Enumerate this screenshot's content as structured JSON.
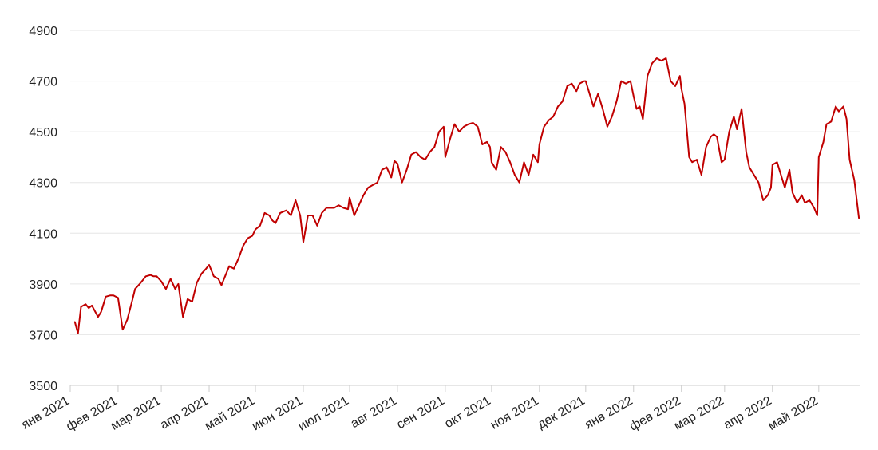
{
  "chart_data": {
    "type": "line",
    "title": "",
    "xlabel": "",
    "ylabel": "",
    "ylim": [
      3500,
      4900
    ],
    "yticks": [
      "3500",
      "3700",
      "3900",
      "4100",
      "4300",
      "4500",
      "4700",
      "4900"
    ],
    "grid": true,
    "legend": "none",
    "xticks": [
      {
        "date": "2021-01-01",
        "label": "янв 2021"
      },
      {
        "date": "2021-02-01",
        "label": "фев 2021"
      },
      {
        "date": "2021-03-01",
        "label": "мар 2021"
      },
      {
        "date": "2021-04-01",
        "label": "апр 2021"
      },
      {
        "date": "2021-05-01",
        "label": "май 2021"
      },
      {
        "date": "2021-06-01",
        "label": "июн 2021"
      },
      {
        "date": "2021-07-01",
        "label": "июл 2021"
      },
      {
        "date": "2021-08-01",
        "label": "авг 2021"
      },
      {
        "date": "2021-09-01",
        "label": "сен 2021"
      },
      {
        "date": "2021-10-01",
        "label": "окт 2021"
      },
      {
        "date": "2021-11-01",
        "label": "ноя 2021"
      },
      {
        "date": "2021-12-01",
        "label": "дек 2021"
      },
      {
        "date": "2022-01-01",
        "label": "янв 2022"
      },
      {
        "date": "2022-02-01",
        "label": "фев 2022"
      },
      {
        "date": "2022-03-01",
        "label": "мар 2022"
      },
      {
        "date": "2022-04-01",
        "label": "апр 2022"
      },
      {
        "date": "2022-05-01",
        "label": "май 2022"
      }
    ],
    "series": [
      {
        "color": "#c00000",
        "x": [
          "2021-01-04",
          "2021-01-06",
          "2021-01-08",
          "2021-01-11",
          "2021-01-13",
          "2021-01-15",
          "2021-01-19",
          "2021-01-21",
          "2021-01-24",
          "2021-01-27",
          "2021-01-29",
          "2021-02-01",
          "2021-02-04",
          "2021-02-07",
          "2021-02-10",
          "2021-02-12",
          "2021-02-15",
          "2021-02-17",
          "2021-02-19",
          "2021-02-22",
          "2021-02-24",
          "2021-02-26",
          "2021-03-01",
          "2021-03-04",
          "2021-03-07",
          "2021-03-10",
          "2021-03-12",
          "2021-03-15",
          "2021-03-18",
          "2021-03-21",
          "2021-03-24",
          "2021-03-27",
          "2021-03-30",
          "2021-04-01",
          "2021-04-04",
          "2021-04-07",
          "2021-04-09",
          "2021-04-12",
          "2021-04-14",
          "2021-04-17",
          "2021-04-20",
          "2021-04-23",
          "2021-04-26",
          "2021-04-29",
          "2021-05-01",
          "2021-05-04",
          "2021-05-07",
          "2021-05-10",
          "2021-05-12",
          "2021-05-14",
          "2021-05-17",
          "2021-05-19",
          "2021-05-21",
          "2021-05-24",
          "2021-05-27",
          "2021-05-30",
          "2021-06-01",
          "2021-06-04",
          "2021-06-07",
          "2021-06-10",
          "2021-06-13",
          "2021-06-16",
          "2021-06-18",
          "2021-06-21",
          "2021-06-24",
          "2021-06-27",
          "2021-06-30",
          "2021-07-01",
          "2021-07-04",
          "2021-07-07",
          "2021-07-10",
          "2021-07-13",
          "2021-07-16",
          "2021-07-19",
          "2021-07-22",
          "2021-07-25",
          "2021-07-28",
          "2021-07-30",
          "2021-08-01",
          "2021-08-04",
          "2021-08-07",
          "2021-08-10",
          "2021-08-13",
          "2021-08-16",
          "2021-08-19",
          "2021-08-22",
          "2021-08-25",
          "2021-08-28",
          "2021-08-31",
          "2021-09-01",
          "2021-09-04",
          "2021-09-07",
          "2021-09-10",
          "2021-09-13",
          "2021-09-16",
          "2021-09-19",
          "2021-09-22",
          "2021-09-25",
          "2021-09-28",
          "2021-09-30",
          "2021-10-01",
          "2021-10-04",
          "2021-10-07",
          "2021-10-10",
          "2021-10-13",
          "2021-10-16",
          "2021-10-19",
          "2021-10-22",
          "2021-10-25",
          "2021-10-28",
          "2021-10-31",
          "2021-11-01",
          "2021-11-04",
          "2021-11-07",
          "2021-11-10",
          "2021-11-13",
          "2021-11-16",
          "2021-11-19",
          "2021-11-22",
          "2021-11-25",
          "2021-11-27",
          "2021-11-30",
          "2021-12-01",
          "2021-12-03",
          "2021-12-06",
          "2021-12-09",
          "2021-12-12",
          "2021-12-15",
          "2021-12-18",
          "2021-12-21",
          "2021-12-24",
          "2021-12-27",
          "2021-12-30",
          "2022-01-01",
          "2022-01-03",
          "2022-01-05",
          "2022-01-07",
          "2022-01-10",
          "2022-01-13",
          "2022-01-16",
          "2022-01-19",
          "2022-01-22",
          "2022-01-25",
          "2022-01-28",
          "2022-01-31",
          "2022-02-01",
          "2022-02-03",
          "2022-02-06",
          "2022-02-08",
          "2022-02-11",
          "2022-02-14",
          "2022-02-17",
          "2022-02-20",
          "2022-02-22",
          "2022-02-24",
          "2022-02-27",
          "2022-03-01",
          "2022-03-04",
          "2022-03-07",
          "2022-03-09",
          "2022-03-12",
          "2022-03-15",
          "2022-03-17",
          "2022-03-20",
          "2022-03-23",
          "2022-03-26",
          "2022-03-29",
          "2022-03-31",
          "2022-04-01",
          "2022-04-04",
          "2022-04-07",
          "2022-04-09",
          "2022-04-12",
          "2022-04-14",
          "2022-04-17",
          "2022-04-20",
          "2022-04-22",
          "2022-04-25",
          "2022-04-28",
          "2022-04-30",
          "2022-05-01",
          "2022-05-04",
          "2022-05-06",
          "2022-05-09",
          "2022-05-12",
          "2022-05-14",
          "2022-05-17",
          "2022-05-19",
          "2022-05-21",
          "2022-05-24",
          "2022-05-27"
        ],
        "values": [
          3750,
          3705,
          3810,
          3820,
          3805,
          3815,
          3770,
          3790,
          3850,
          3855,
          3855,
          3845,
          3720,
          3760,
          3830,
          3880,
          3900,
          3915,
          3930,
          3935,
          3930,
          3930,
          3910,
          3880,
          3920,
          3880,
          3900,
          3770,
          3840,
          3830,
          3905,
          3940,
          3960,
          3975,
          3930,
          3920,
          3895,
          3940,
          3970,
          3960,
          4000,
          4050,
          4080,
          4090,
          4115,
          4130,
          4180,
          4170,
          4150,
          4140,
          4180,
          4185,
          4190,
          4170,
          4230,
          4170,
          4065,
          4170,
          4170,
          4130,
          4180,
          4200,
          4200,
          4200,
          4210,
          4200,
          4195,
          4240,
          4170,
          4210,
          4250,
          4280,
          4290,
          4300,
          4350,
          4360,
          4320,
          4385,
          4375,
          4300,
          4350,
          4410,
          4420,
          4400,
          4390,
          4420,
          4440,
          4500,
          4520,
          4400,
          4470,
          4530,
          4500,
          4520,
          4530,
          4535,
          4520,
          4450,
          4460,
          4440,
          4380,
          4350,
          4440,
          4420,
          4380,
          4330,
          4300,
          4380,
          4330,
          4410,
          4380,
          4450,
          4520,
          4545,
          4560,
          4600,
          4620,
          4680,
          4690,
          4660,
          4690,
          4700,
          4700,
          4660,
          4600,
          4650,
          4590,
          4520,
          4560,
          4620,
          4700,
          4690,
          4700,
          4640,
          4590,
          4600,
          4550,
          4720,
          4770,
          4790,
          4780,
          4790,
          4700,
          4680,
          4720,
          4670,
          4610,
          4400,
          4380,
          4390,
          4330,
          4440,
          4480,
          4490,
          4480,
          4380,
          4390,
          4500,
          4560,
          4510,
          4590,
          4420,
          4360,
          4330,
          4300,
          4230,
          4250,
          4280,
          4370,
          4380,
          4320,
          4280,
          4350,
          4260,
          4220,
          4250,
          4220,
          4230,
          4200,
          4170,
          4400,
          4460,
          4530,
          4540,
          4600,
          4580,
          4600,
          4550,
          4390,
          4310,
          4160
        ]
      }
    ]
  }
}
